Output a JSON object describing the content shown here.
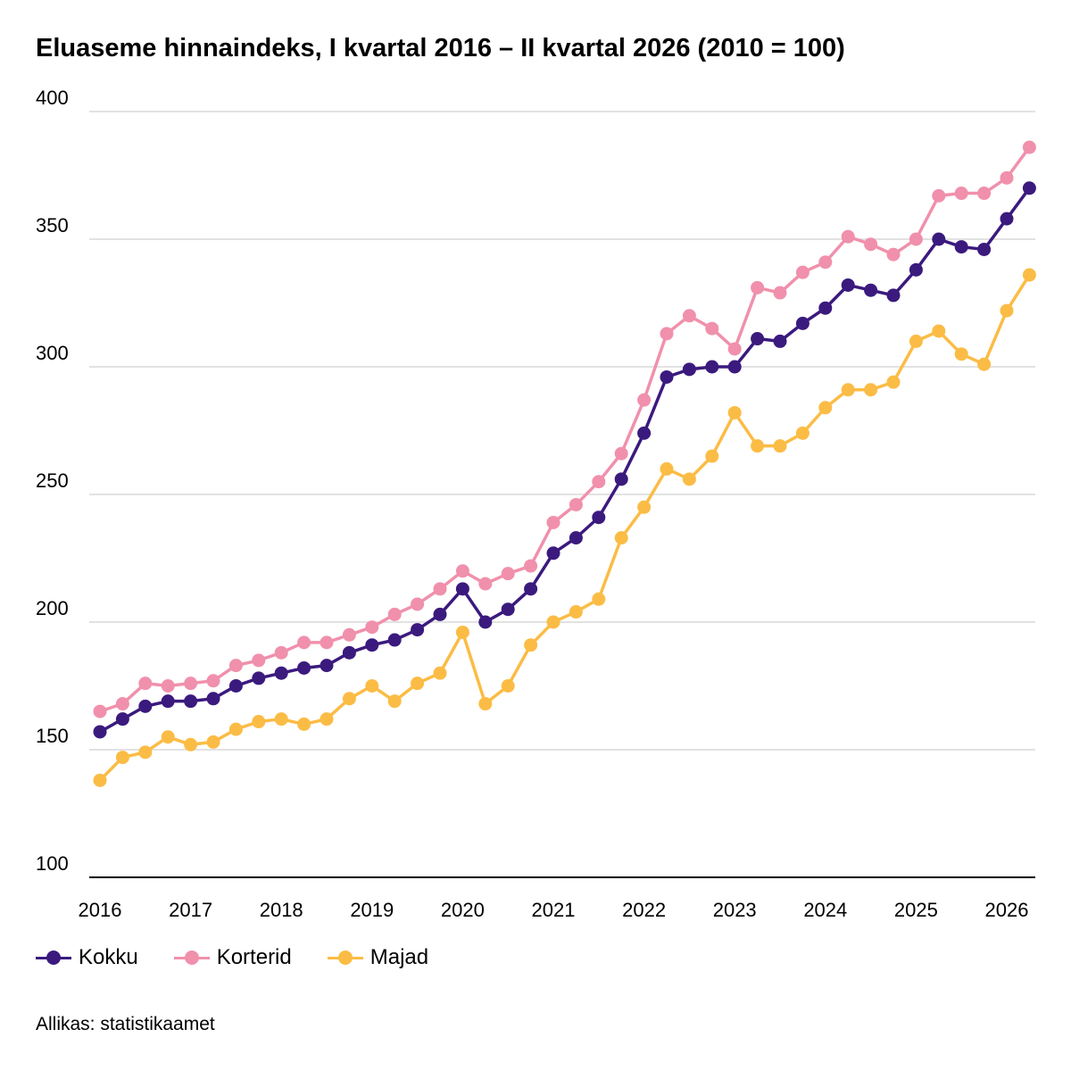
{
  "title": "Eluaseme hinnaindeks, I kvartal 2016 – II kvartal 2026 (2010 = 100)",
  "source": "Allikas: statistikaamet",
  "chart_data": {
    "type": "line",
    "title": "Eluaseme hinnaindeks, I kvartal 2016 – II kvartal 2026 (2010 = 100)",
    "xlabel": "",
    "ylabel": "",
    "ylim": [
      100,
      400
    ],
    "yticks": [
      "100",
      "150",
      "200",
      "250",
      "300",
      "350",
      "400"
    ],
    "xticks": [
      "2016",
      "2017",
      "2018",
      "2019",
      "2020",
      "2021",
      "2022",
      "2023",
      "2024",
      "2025",
      "2026"
    ],
    "grid": "horizontal",
    "legend_position": "bottom-left",
    "x": [
      "2016 I",
      "2016 II",
      "2016 III",
      "2016 IV",
      "2017 I",
      "2017 II",
      "2017 III",
      "2017 IV",
      "2018 I",
      "2018 II",
      "2018 III",
      "2018 IV",
      "2019 I",
      "2019 II",
      "2019 III",
      "2019 IV",
      "2020 I",
      "2020 II",
      "2020 III",
      "2020 IV",
      "2021 I",
      "2021 II",
      "2021 III",
      "2021 IV",
      "2022 I",
      "2022 II",
      "2022 III",
      "2022 IV",
      "2023 I",
      "2023 II",
      "2023 III",
      "2023 IV",
      "2024 I",
      "2024 II",
      "2024 III",
      "2024 IV",
      "2025 I",
      "2025 II",
      "2025 III",
      "2025 IV",
      "2026 I",
      "2026 II"
    ],
    "series": [
      {
        "name": "Kokku",
        "color": "#3b1a7e",
        "values": [
          157,
          162,
          167,
          169,
          169,
          170,
          175,
          178,
          180,
          182,
          183,
          188,
          191,
          193,
          197,
          203,
          213,
          200,
          205,
          213,
          227,
          233,
          241,
          256,
          274,
          296,
          299,
          300,
          300,
          311,
          310,
          317,
          323,
          332,
          330,
          328,
          338,
          350,
          347,
          346,
          358,
          370
        ]
      },
      {
        "name": "Korterid",
        "color": "#f090ac",
        "values": [
          165,
          168,
          176,
          175,
          176,
          177,
          183,
          185,
          188,
          192,
          192,
          195,
          198,
          203,
          207,
          213,
          220,
          215,
          219,
          222,
          239,
          246,
          255,
          266,
          287,
          313,
          320,
          315,
          307,
          331,
          329,
          337,
          341,
          351,
          348,
          344,
          350,
          367,
          368,
          368,
          374,
          386
        ]
      },
      {
        "name": "Majad",
        "color": "#fbbc45",
        "values": [
          138,
          147,
          149,
          155,
          152,
          153,
          158,
          161,
          162,
          160,
          162,
          170,
          175,
          169,
          176,
          180,
          196,
          168,
          175,
          191,
          200,
          204,
          209,
          233,
          245,
          260,
          256,
          265,
          282,
          269,
          269,
          274,
          284,
          291,
          291,
          294,
          310,
          314,
          305,
          301,
          322,
          336
        ]
      }
    ]
  }
}
